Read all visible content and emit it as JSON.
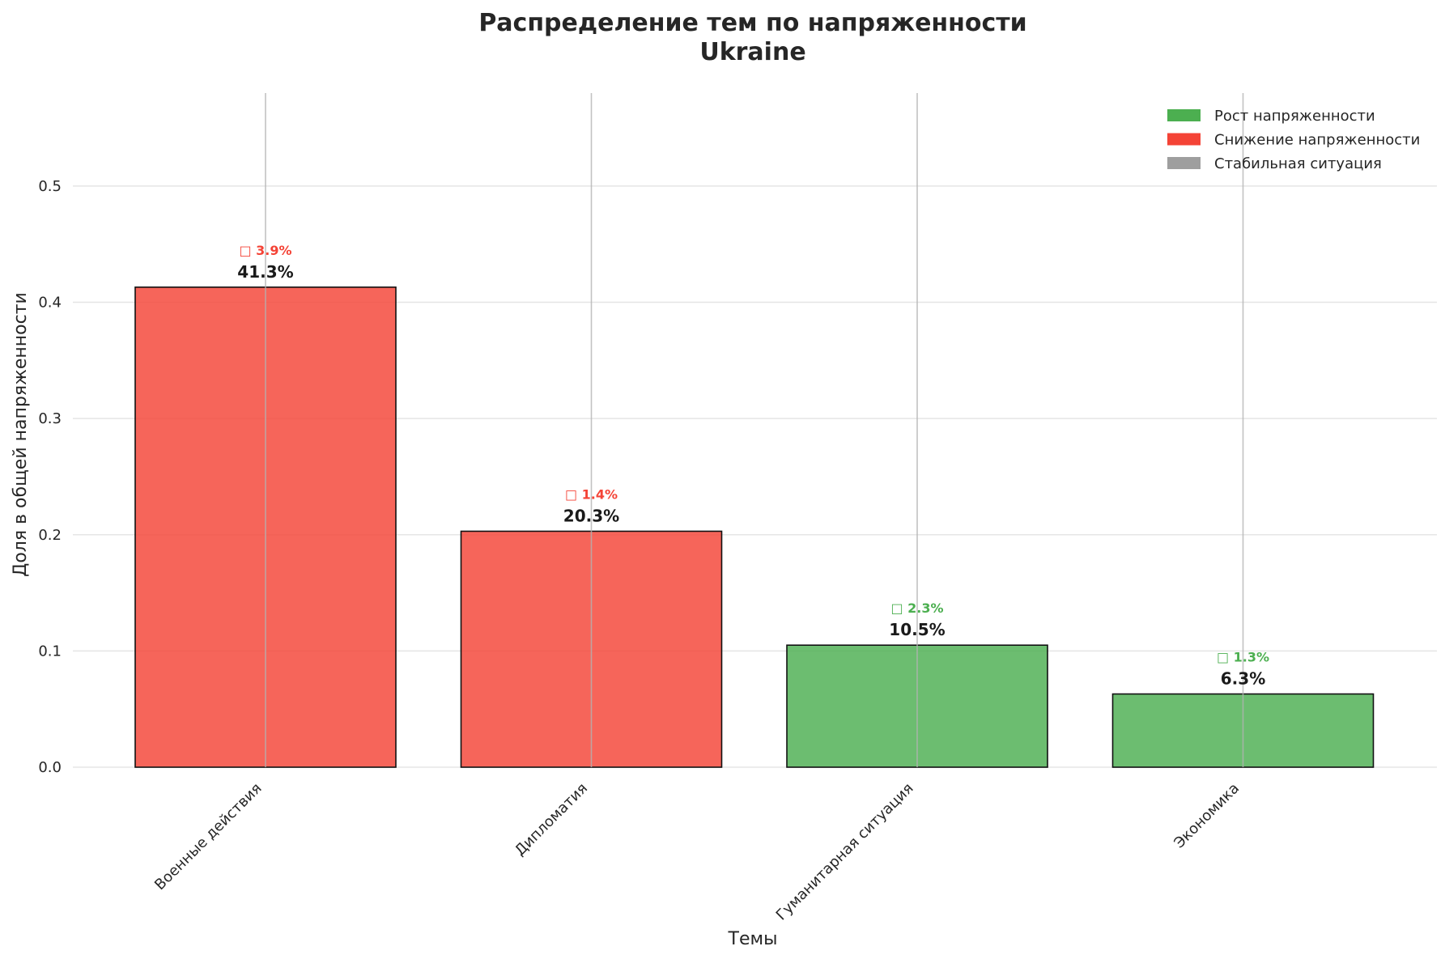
{
  "chart_data": {
    "type": "bar",
    "title": "Распределение тем по напряженности",
    "subtitle": "Ukraine",
    "xlabel": "Темы",
    "ylabel": "Доля в общей напряженности",
    "categories": [
      "Военные действия",
      "Дипломатия",
      "Гуманитарная ситуация",
      "Экономика"
    ],
    "values": [
      0.413,
      0.203,
      0.105,
      0.063
    ],
    "value_labels": [
      "41.3%",
      "20.3%",
      "10.5%",
      "6.3%"
    ],
    "change_labels": [
      "□ 3.9%",
      "□ 1.4%",
      "□ 2.3%",
      "□ 1.3%"
    ],
    "trend": [
      "decrease",
      "decrease",
      "increase",
      "increase"
    ],
    "ylim": [
      0,
      0.58
    ],
    "yticks": [
      0.0,
      0.1,
      0.2,
      0.3,
      0.4,
      0.5
    ],
    "ytick_labels": [
      "0.0",
      "0.1",
      "0.2",
      "0.3",
      "0.4",
      "0.5"
    ],
    "grid": true,
    "legend": {
      "placement": "top-right",
      "entries": [
        {
          "label": "Рост напряженности",
          "color": "#4caf50"
        },
        {
          "label": "Снижение напряженности",
          "color": "#f44336"
        },
        {
          "label": "Стабильная ситуация",
          "color": "#9e9e9e"
        }
      ]
    },
    "colors": {
      "increase": "#4caf50",
      "decrease": "#f44336",
      "stable": "#9e9e9e"
    }
  }
}
